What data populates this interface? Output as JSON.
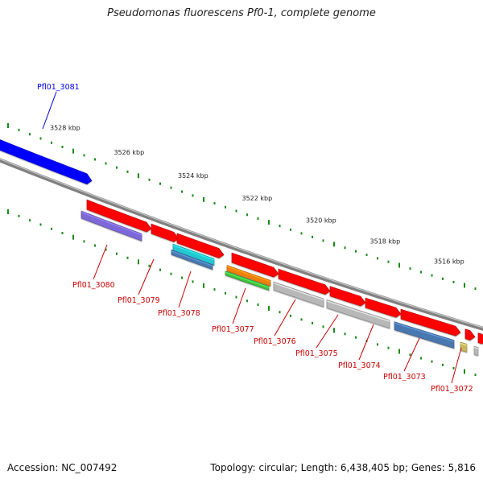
{
  "title": "Pseudomonas fluorescens Pf0-1, complete genome",
  "footer": {
    "accession": "Accession: NC_007492",
    "summary": "Topology: circular; Length: 6,438,405 bp; Genes: 5,816"
  },
  "scale_labels": [
    "3528 kbp",
    "3526 kbp",
    "3524 kbp",
    "3522 kbp",
    "3520 kbp",
    "3518 kbp",
    "3516 kbp"
  ],
  "highlighted_gene": {
    "label": "Pfl01_3081",
    "color": "#0000ee"
  },
  "gene_labels": [
    {
      "label": "Pfl01_3080",
      "color": "#cc0000"
    },
    {
      "label": "Pfl01_3079",
      "color": "#cc0000"
    },
    {
      "label": "Pfl01_3078",
      "color": "#cc0000"
    },
    {
      "label": "Pfl01_3077",
      "color": "#cc0000"
    },
    {
      "label": "Pfl01_3076",
      "color": "#cc0000"
    },
    {
      "label": "Pfl01_3075",
      "color": "#cc0000"
    },
    {
      "label": "Pfl01_3074",
      "color": "#cc0000"
    },
    {
      "label": "Pfl01_3073",
      "color": "#cc0000"
    },
    {
      "label": "Pfl01_3072",
      "color": "#cc0000"
    }
  ],
  "colors": {
    "backbone": "#808080",
    "tick": "#1a8a1a",
    "forward_gene": "#0000ff",
    "reverse_gene": "#ff0000",
    "cog_purple": "#7b68d8",
    "cog_cyan": "#20c8d0",
    "cog_steelblue": "#4a78b0",
    "cog_orange": "#f08010",
    "cog_green": "#40c040",
    "cog_gray": "#b8b8b8",
    "cog_olive": "#c8b860"
  }
}
